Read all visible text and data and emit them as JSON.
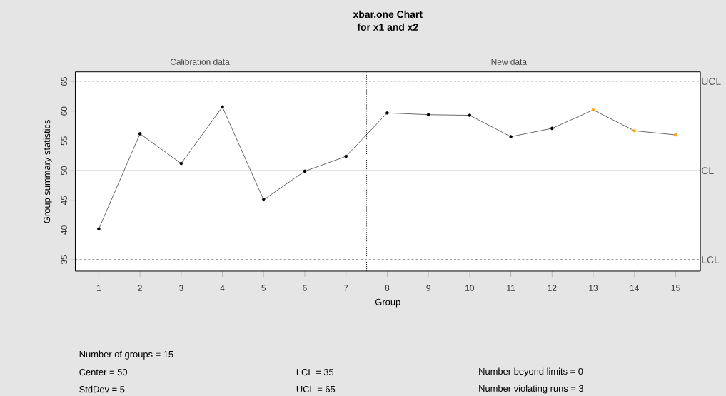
{
  "chart_data": {
    "type": "line",
    "title": "xbar.one Chart",
    "subtitle": "for x1 and x2",
    "xlabel": "Group",
    "ylabel": "Group summary statistics",
    "x": [
      1,
      2,
      3,
      4,
      5,
      6,
      7,
      8,
      9,
      10,
      11,
      12,
      13,
      14,
      15
    ],
    "series": [
      {
        "color": "#000000",
        "values": [
          40.2,
          56.2,
          51.2,
          60.7,
          45.1,
          49.9,
          52.4,
          59.7,
          59.4,
          59.3,
          55.7,
          57.1,
          60.2,
          56.7,
          56.0
        ],
        "colors": [
          "#000000",
          "#000000",
          "#000000",
          "#000000",
          "#000000",
          "#000000",
          "#000000",
          "#000000",
          "#000000",
          "#000000",
          "#000000",
          "#000000",
          "#ffa500",
          "#ffa500",
          "#ffa500"
        ]
      }
    ],
    "xlim": [
      0.43,
      15.6
    ],
    "xticks": [
      1,
      2,
      3,
      4,
      5,
      6,
      7,
      8,
      9,
      10,
      11,
      12,
      13,
      14,
      15
    ],
    "ylim": [
      33.1,
      66.6
    ],
    "yticks": [
      35,
      40,
      45,
      50,
      55,
      60,
      65
    ],
    "ref_lines": [
      {
        "axis": "y",
        "value": 65,
        "label": "UCL",
        "color": "#808080",
        "line_style": "dashed"
      },
      {
        "axis": "y",
        "value": 50,
        "label": "CL",
        "color": "#808080",
        "line_style": "solid"
      },
      {
        "axis": "y",
        "value": 35,
        "label": "LCL",
        "color": "#000000",
        "line_style": "dashed"
      },
      {
        "axis": "x",
        "value": 7.5,
        "color": "#000000",
        "line_style": "dotted"
      }
    ],
    "annotations": [
      "Calibration data",
      "New data",
      "Number of groups = 15",
      "Center = 50",
      "StdDev = 5",
      "LCL = 35",
      "UCL = 65",
      "Number beyond limits = 0",
      "Number violating runs = 3"
    ],
    "marker": "circle",
    "line_style": "solid"
  }
}
